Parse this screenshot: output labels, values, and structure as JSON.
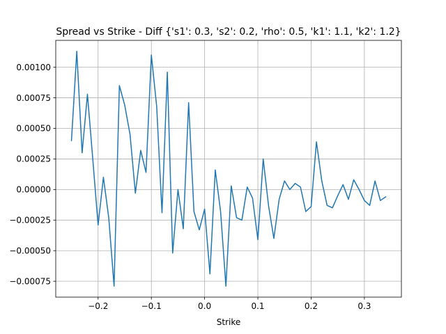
{
  "chart_data": {
    "type": "line",
    "title": "Spread vs Strike - Diff {'s1': 0.3, 's2': 0.2, 'rho': 0.5, 'k1': 1.1, 'k2': 1.2}",
    "xlabel": "Strike",
    "ylabel": "",
    "xlim": [
      -0.2795,
      0.3695
    ],
    "ylim": [
      -0.00088,
      0.00122
    ],
    "grid": true,
    "x_ticks": [
      -0.2,
      -0.1,
      0.0,
      0.1,
      0.2,
      0.3
    ],
    "x_tick_labels": [
      "−0.2",
      "−0.1",
      "0.0",
      "0.1",
      "0.2",
      "0.3"
    ],
    "y_ticks": [
      -0.00075,
      -0.0005,
      -0.00025,
      0.0,
      0.00025,
      0.0005,
      0.00075,
      0.001
    ],
    "y_tick_labels": [
      "−0.00075",
      "−0.00050",
      "−0.00025",
      "0.00000",
      "0.00025",
      "0.00050",
      "0.00075",
      "0.00100"
    ],
    "colors": {
      "line": "#1f77b4",
      "grid": "#b0b0b0",
      "axes": "#000000"
    },
    "series": [
      {
        "name": "diff",
        "x": [
          -0.25,
          -0.24,
          -0.23,
          -0.22,
          -0.21,
          -0.2,
          -0.19,
          -0.18,
          -0.17,
          -0.16,
          -0.15,
          -0.14,
          -0.13,
          -0.12,
          -0.11,
          -0.1,
          -0.09,
          -0.08,
          -0.07,
          -0.06,
          -0.05,
          -0.04,
          -0.03,
          -0.02,
          -0.01,
          0.0,
          0.01,
          0.02,
          0.03,
          0.04,
          0.05,
          0.06,
          0.07,
          0.08,
          0.09,
          0.1,
          0.11,
          0.12,
          0.13,
          0.14,
          0.15,
          0.16,
          0.17,
          0.18,
          0.19,
          0.2,
          0.21,
          0.22,
          0.23,
          0.24,
          0.25,
          0.26,
          0.27,
          0.28,
          0.29,
          0.3,
          0.31,
          0.32,
          0.33,
          0.34
        ],
        "values": [
          0.0004,
          0.00113,
          0.0003,
          0.00078,
          0.00025,
          -0.00029,
          0.0001,
          -0.00023,
          -0.00079,
          0.00085,
          0.00069,
          0.00045,
          -3e-05,
          0.00032,
          0.00014,
          0.0011,
          0.00068,
          -0.00019,
          0.00096,
          -0.00052,
          0.0,
          -0.00032,
          0.00071,
          -0.00018,
          -0.00033,
          -0.00016,
          -0.00069,
          0.00016,
          -0.00018,
          -0.00079,
          3e-05,
          -0.00023,
          -0.00025,
          2e-05,
          -7e-05,
          -0.00041,
          0.00025,
          -0.00013,
          -0.0004,
          -8e-05,
          7e-05,
          0.0,
          5e-05,
          2e-05,
          -0.00018,
          -0.00014,
          0.00039,
          7e-05,
          -0.00013,
          -0.00015,
          -5e-05,
          4e-05,
          -8e-05,
          8e-05,
          0.0,
          -9e-05,
          -0.00013,
          7e-05,
          -9e-05,
          -6e-05
        ]
      }
    ]
  }
}
